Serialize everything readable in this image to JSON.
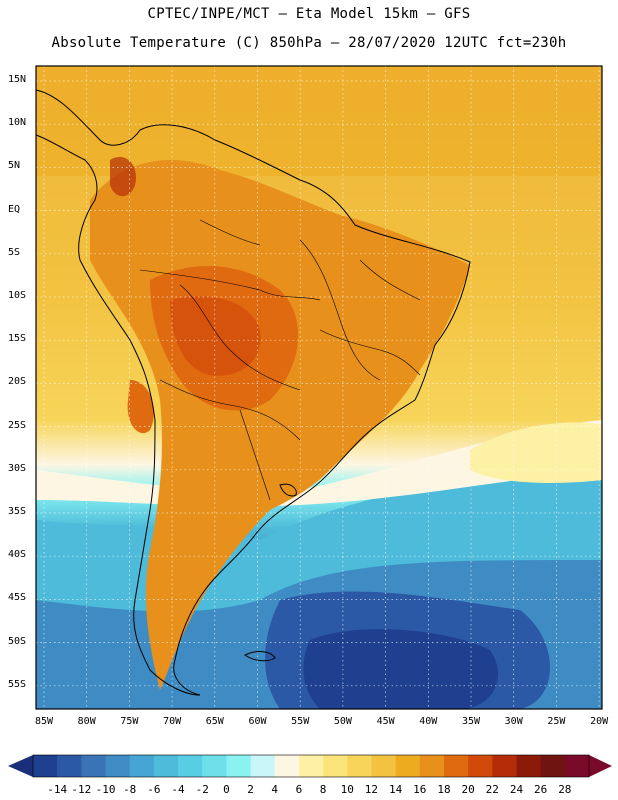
{
  "header": {
    "line1": "CPTEC/INPE/MCT –  Eta Model 15km – GFS",
    "line2": "Absolute Temperature (C) 850hPa – 28/07/2020 12UTC fct=230h"
  },
  "map": {
    "lat_labels": [
      "15N",
      "10N",
      "5N",
      "EQ",
      "5S",
      "10S",
      "15S",
      "20S",
      "25S",
      "30S",
      "35S",
      "40S",
      "45S",
      "50S",
      "55S"
    ],
    "lon_labels": [
      "85W",
      "80W",
      "75W",
      "70W",
      "65W",
      "60W",
      "55W",
      "50W",
      "45W",
      "40W",
      "35W",
      "30W",
      "25W",
      "20W"
    ]
  },
  "colorbar": {
    "labels": [
      "-14",
      "-12",
      "-10",
      "-8",
      "-6",
      "-4",
      "-2",
      "0",
      "2",
      "4",
      "6",
      "8",
      "10",
      "12",
      "14",
      "16",
      "18",
      "20",
      "22",
      "24",
      "26",
      "28"
    ],
    "colors": [
      "#1f3f8f",
      "#2b59a6",
      "#3a74b6",
      "#3f8cc4",
      "#46a5d4",
      "#4dbbd9",
      "#58cde3",
      "#6ee0ea",
      "#8af3f2",
      "#c9f6f8",
      "#fdf6e3",
      "#fdf1a6",
      "#fbe57a",
      "#f7d55a",
      "#f2c240",
      "#edac20",
      "#e8901c",
      "#e06a10",
      "#d24a0a",
      "#b52c08",
      "#8c1a08",
      "#6f1410",
      "#7a0a2a"
    ],
    "arrow_left_color": "#1a2f7a",
    "arrow_right_color": "#7a0a2a"
  },
  "palette": {
    "ocean_tropical": "#f2c240",
    "land_hot": "#e88a1a",
    "land_hotter": "#e06a10",
    "cool_band": "#fdf6e3",
    "cold": "#46a5d4",
    "very_cold": "#2b59a6",
    "coldest": "#1f3f8f"
  }
}
